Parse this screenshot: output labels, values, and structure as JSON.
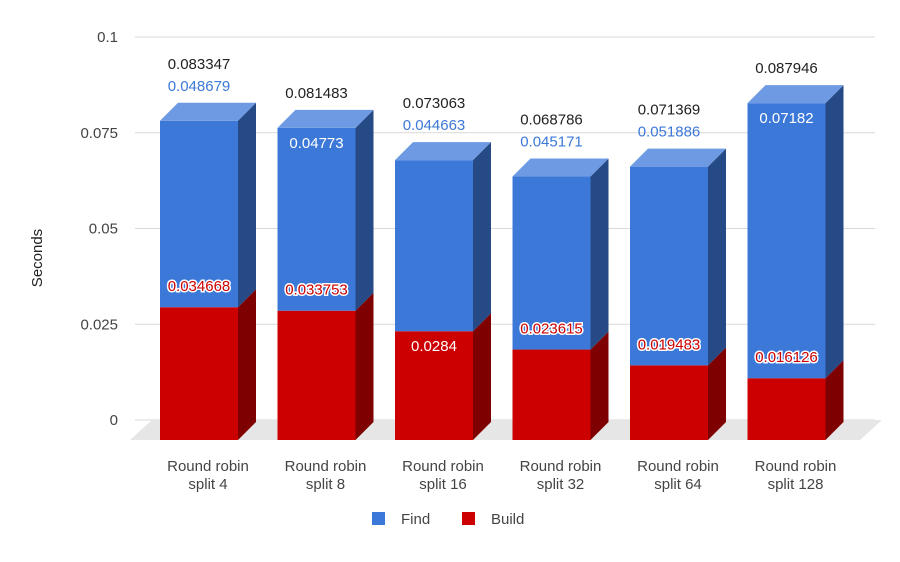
{
  "chart_data": {
    "type": "bar",
    "stacked": true,
    "three_d": true,
    "title": "",
    "xlabel": "",
    "ylabel": "Seconds",
    "ylim": [
      0,
      0.1
    ],
    "y_ticks": [
      "0",
      "0.025",
      "0.05",
      "0.075",
      "0.1"
    ],
    "y_tick_values": [
      0,
      0.025,
      0.05,
      0.075,
      0.1
    ],
    "grid": true,
    "legend_position": "bottom",
    "categories": [
      [
        "Round robin",
        "split 4"
      ],
      [
        "Round robin",
        "split 8"
      ],
      [
        "Round robin",
        "split 16"
      ],
      [
        "Round robin",
        "split 32"
      ],
      [
        "Round robin",
        "split 64"
      ],
      [
        "Round robin",
        "split 128"
      ]
    ],
    "series": [
      {
        "name": "Build",
        "color": "#cc0000",
        "values": [
          0.034668,
          0.033753,
          0.0284,
          0.023615,
          0.019483,
          0.016126
        ],
        "labels": [
          "0.034668",
          "0.033753",
          "0.0284",
          "0.023615",
          "0.019483",
          "0.016126"
        ]
      },
      {
        "name": "Find",
        "color": "#3c78d8",
        "values": [
          0.048679,
          0.04773,
          0.044663,
          0.045171,
          0.051886,
          0.07182
        ],
        "labels": [
          "0.048679",
          "0.04773",
          "0.044663",
          "0.045171",
          "0.051886",
          "0.07182"
        ]
      }
    ],
    "totals": [
      "0.083347",
      "0.081483",
      "0.073063",
      "0.068786",
      "0.071369",
      "0.087946"
    ],
    "legend": [
      {
        "name": "Find",
        "color": "#3c78d8"
      },
      {
        "name": "Build",
        "color": "#cc0000"
      }
    ]
  }
}
